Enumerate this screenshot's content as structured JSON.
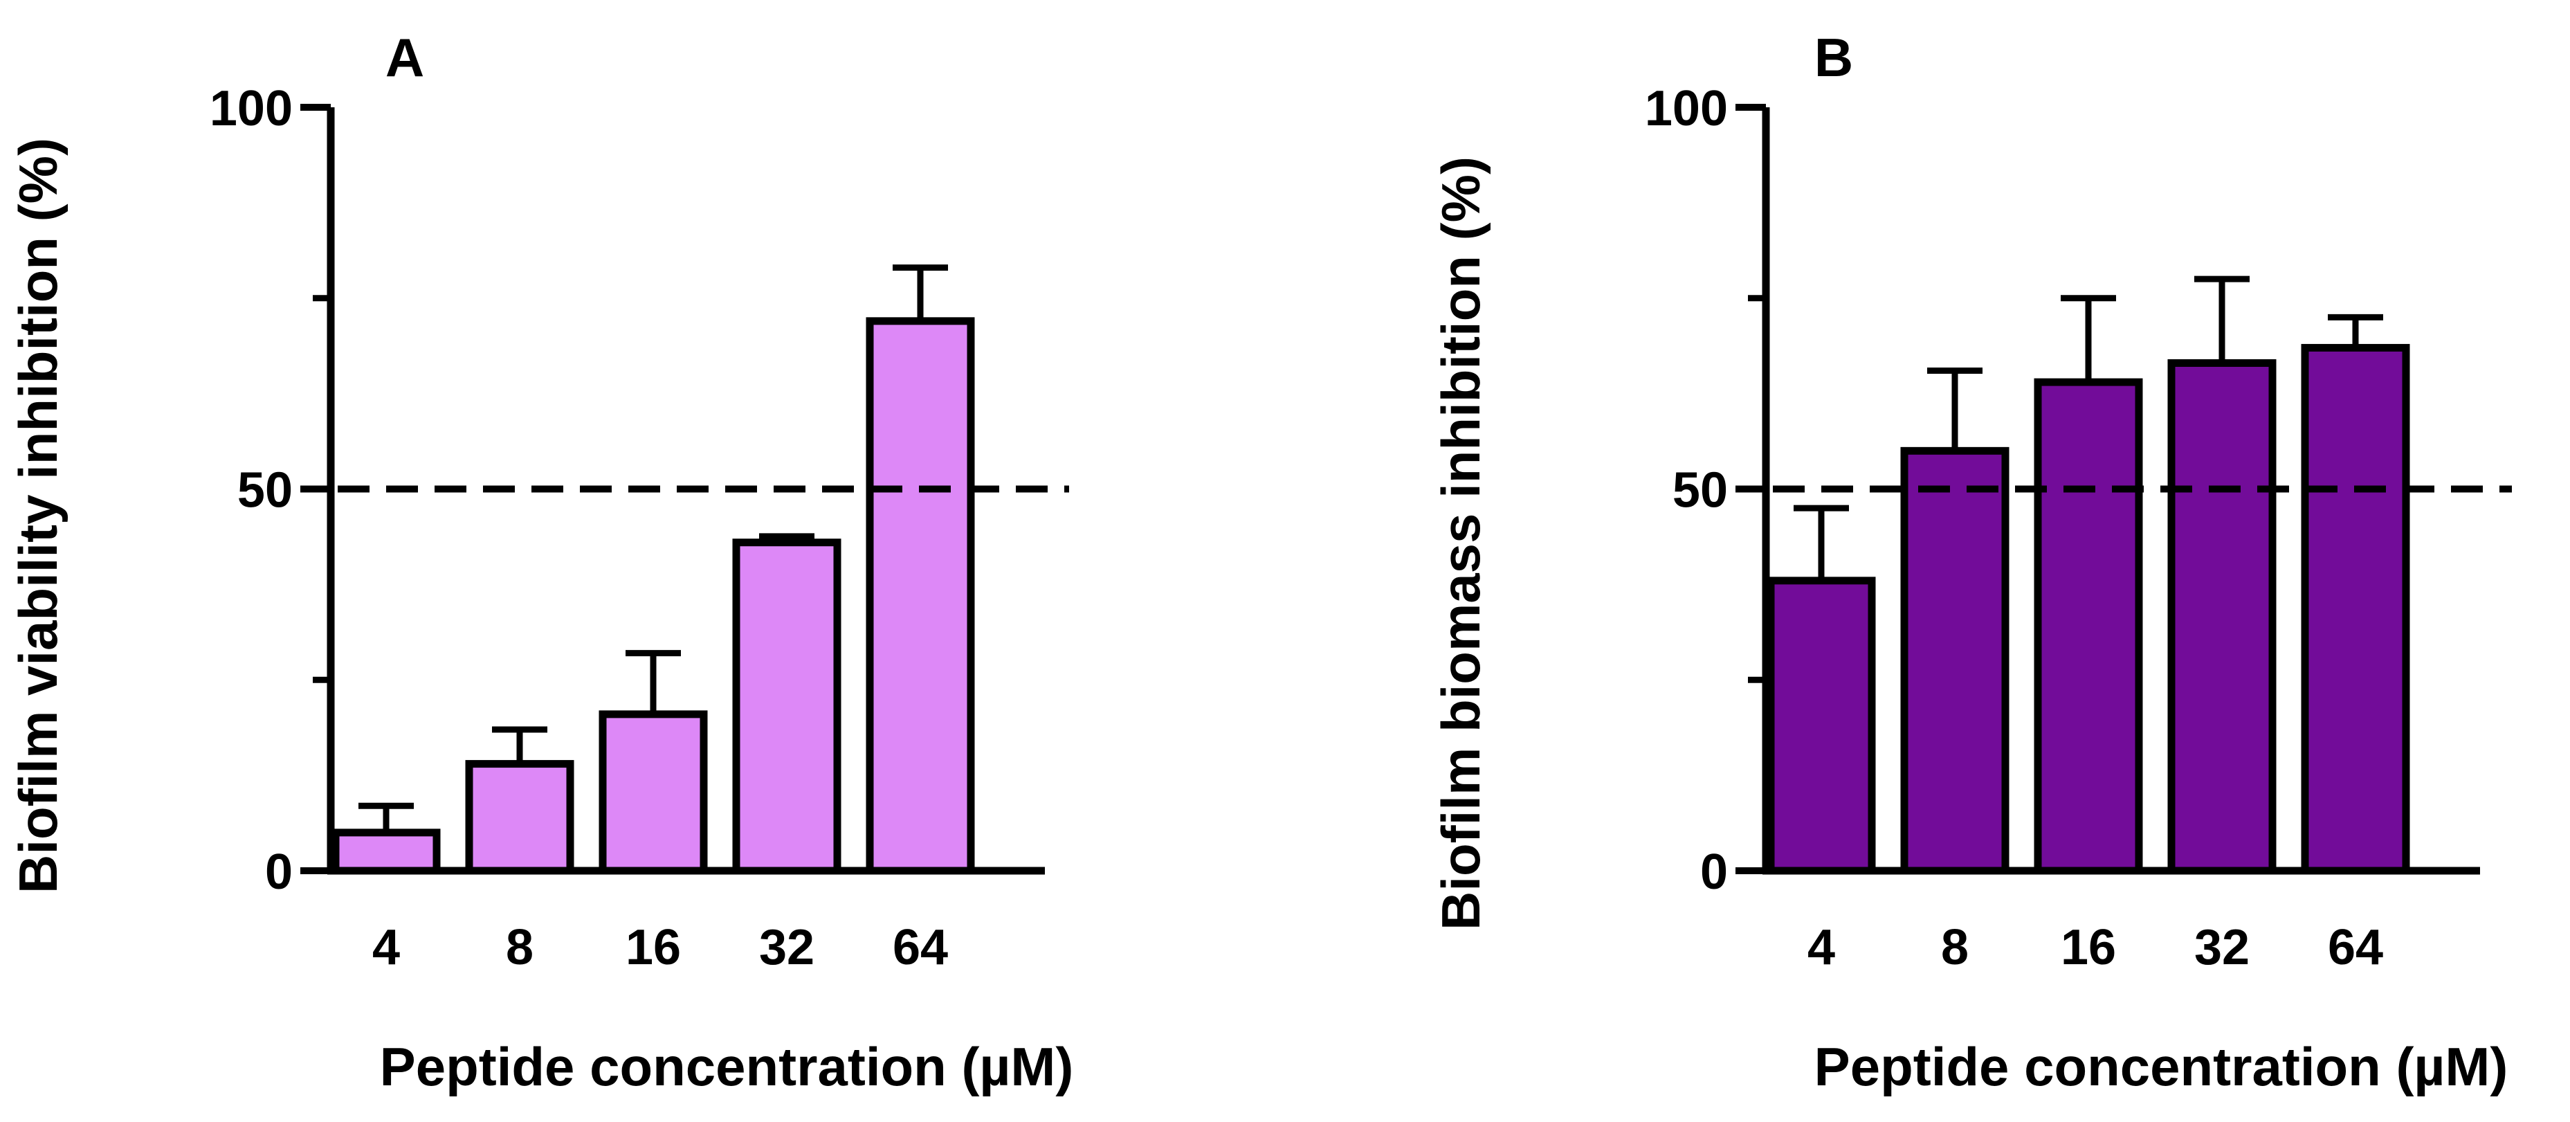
{
  "chart_data": [
    {
      "id": "A",
      "type": "bar",
      "panel_label": "A",
      "title": "",
      "xlabel": "Peptide concentration (µM)",
      "ylabel": "Biofilm viability inhibition (%)",
      "categories": [
        "4",
        "8",
        "16",
        "32",
        "64"
      ],
      "values": [
        5,
        14,
        20.5,
        43,
        72
      ],
      "errors": [
        3.5,
        4.5,
        8,
        0.8,
        7
      ],
      "ylim": [
        0,
        100
      ],
      "yticks": [
        "0",
        "50",
        "100"
      ],
      "threshold": 50,
      "bar_color": "#dd88f7",
      "grid": false
    },
    {
      "id": "B",
      "type": "bar",
      "panel_label": "B",
      "title": "",
      "xlabel": "Peptide concentration (µM)",
      "ylabel": "Biofilm biomass  inhibition (%)",
      "categories": [
        "4",
        "8",
        "16",
        "32",
        "64"
      ],
      "values": [
        38,
        55,
        64,
        66.5,
        68.5
      ],
      "errors": [
        9.5,
        10.5,
        11,
        11,
        4
      ],
      "ylim": [
        0,
        100
      ],
      "yticks": [
        "0",
        "50",
        "100"
      ],
      "threshold": 50,
      "bar_color": "#720c99",
      "grid": false
    }
  ]
}
